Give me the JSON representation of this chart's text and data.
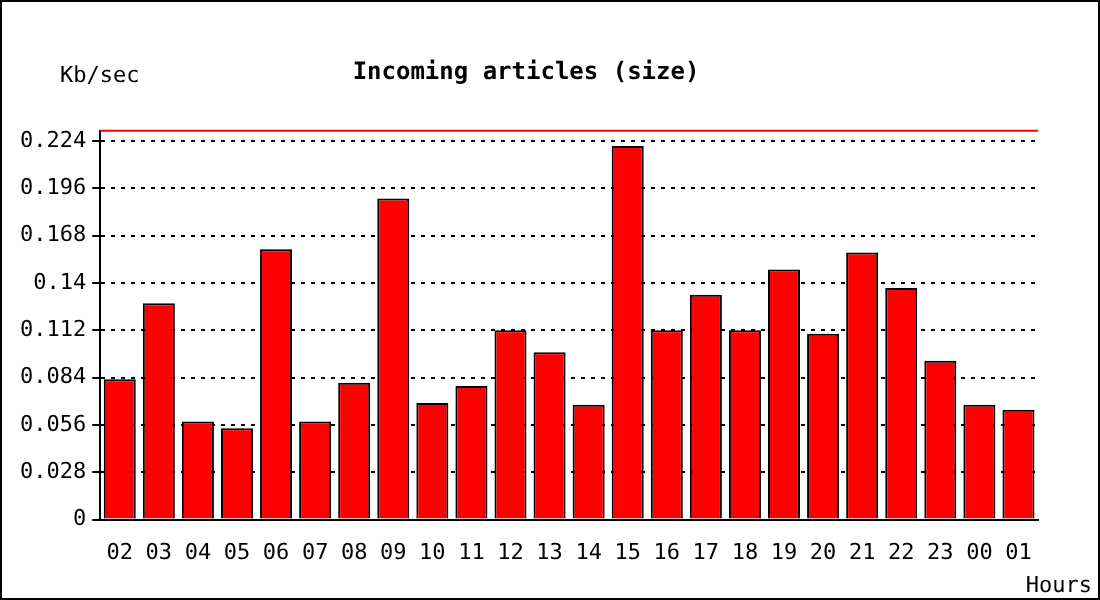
{
  "chart_data": {
    "type": "bar",
    "title": "Incoming articles (size)",
    "xlabel": "Hours",
    "ylabel": "Kb/sec",
    "categories": [
      "02",
      "03",
      "04",
      "05",
      "06",
      "07",
      "08",
      "09",
      "10",
      "11",
      "12",
      "13",
      "14",
      "15",
      "16",
      "17",
      "18",
      "19",
      "20",
      "21",
      "22",
      "23",
      "00",
      "01"
    ],
    "values": [
      0.083,
      0.128,
      0.058,
      0.054,
      0.16,
      0.058,
      0.081,
      0.19,
      0.069,
      0.079,
      0.112,
      0.099,
      0.068,
      0.221,
      0.112,
      0.133,
      0.112,
      0.148,
      0.11,
      0.158,
      0.137,
      0.094,
      0.068,
      0.065
    ],
    "color": "#ff0000",
    "ylim": [
      0,
      0.23
    ],
    "yticks": [
      0,
      0.028,
      0.056,
      0.084,
      0.112,
      0.14,
      0.168,
      0.196,
      0.224
    ],
    "grid": "y",
    "line_style": "dotted",
    "ref_lines": [
      {
        "axis": "y",
        "value": 0.23,
        "color": "#ff0000"
      }
    ]
  }
}
